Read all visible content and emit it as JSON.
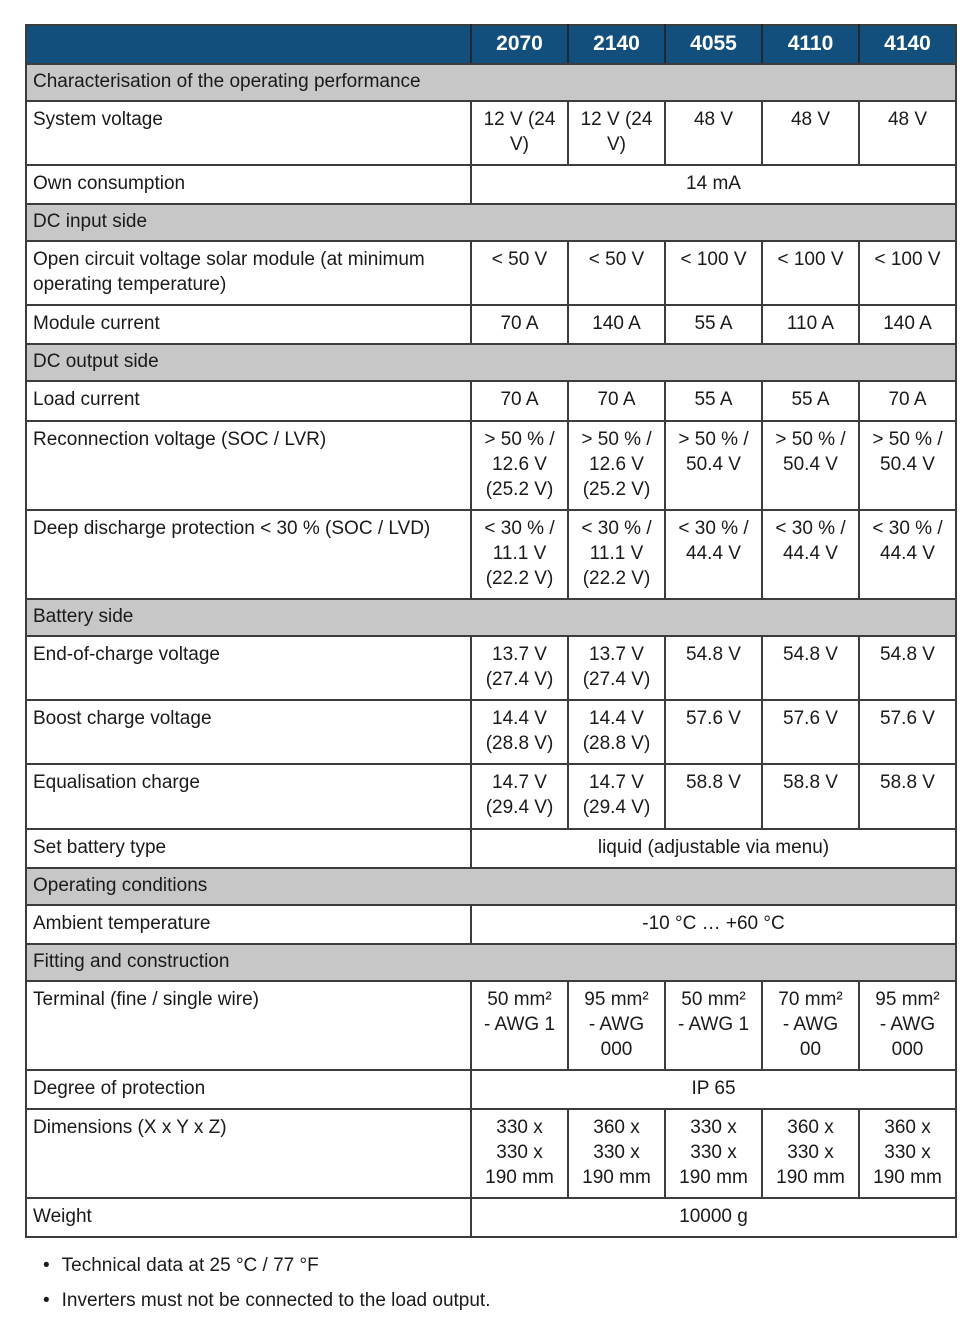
{
  "colors": {
    "header_bg": "#124F7D",
    "section_bg": "#C7C7C7",
    "border": "#3C3C3C",
    "text": "#1A1A1A",
    "header_text": "#FFFFFF"
  },
  "table": {
    "columns": [
      "",
      "2070",
      "2140",
      "4055",
      "4110",
      "4140"
    ],
    "rows": [
      {
        "type": "section",
        "label": "Characterisation of the operating performance"
      },
      {
        "type": "data",
        "label": "System voltage",
        "values": [
          "12 V (24\nV)",
          "12 V (24\nV)",
          "48 V",
          "48 V",
          "48 V"
        ]
      },
      {
        "type": "span",
        "label": "Own consumption",
        "value": "14 mA"
      },
      {
        "type": "section",
        "label": "DC input side"
      },
      {
        "type": "data",
        "label": "Open circuit voltage solar module (at minimum operating temperature)",
        "values": [
          "< 50 V",
          "< 50 V",
          "< 100 V",
          "< 100 V",
          "< 100 V"
        ]
      },
      {
        "type": "data",
        "label": "Module current",
        "values": [
          "70 A",
          "140 A",
          "55 A",
          "110 A",
          "140 A"
        ]
      },
      {
        "type": "section",
        "label": "DC output side"
      },
      {
        "type": "data",
        "label": "Load current",
        "values": [
          "70 A",
          "70 A",
          "55 A",
          "55 A",
          "70 A"
        ]
      },
      {
        "type": "data",
        "label": "Reconnection voltage (SOC / LVR)",
        "values": [
          "> 50 % /\n12.6 V\n(25.2 V)",
          "> 50 % /\n12.6 V\n(25.2 V)",
          "> 50 % /\n50.4 V",
          "> 50 % /\n50.4 V",
          "> 50 % /\n50.4 V"
        ]
      },
      {
        "type": "data",
        "label": "Deep discharge protection < 30 % (SOC / LVD)",
        "values": [
          "< 30 % /\n11.1 V\n(22.2 V)",
          "< 30 % /\n11.1 V\n(22.2 V)",
          "< 30 % /\n44.4 V",
          "< 30 % /\n44.4 V",
          "< 30 % /\n44.4 V"
        ]
      },
      {
        "type": "section",
        "label": "Battery side"
      },
      {
        "type": "data",
        "label": "End-of-charge voltage",
        "values": [
          "13.7 V\n(27.4 V)",
          "13.7 V\n(27.4 V)",
          "54.8 V",
          "54.8 V",
          "54.8 V"
        ]
      },
      {
        "type": "data",
        "label": "Boost charge voltage",
        "values": [
          "14.4 V\n(28.8 V)",
          "14.4 V\n(28.8 V)",
          "57.6 V",
          "57.6 V",
          "57.6 V"
        ]
      },
      {
        "type": "data",
        "label": "Equalisation charge",
        "values": [
          "14.7 V\n(29.4 V)",
          "14.7 V\n(29.4 V)",
          "58.8 V",
          "58.8 V",
          "58.8 V"
        ]
      },
      {
        "type": "span",
        "label": "Set battery type",
        "value": "liquid (adjustable via menu)"
      },
      {
        "type": "section",
        "label": "Operating conditions"
      },
      {
        "type": "span",
        "label": "Ambient temperature",
        "value": "-10 °C … +60 °C"
      },
      {
        "type": "section",
        "label": "Fitting and construction"
      },
      {
        "type": "data",
        "label": "Terminal (fine / single wire)",
        "values": [
          "50 mm²\n- AWG 1",
          "95 mm²\n- AWG\n000",
          "50 mm²\n- AWG 1",
          "70 mm²\n- AWG\n00",
          "95 mm²\n- AWG\n000"
        ]
      },
      {
        "type": "span",
        "label": "Degree of protection",
        "value": "IP 65"
      },
      {
        "type": "data",
        "label": "Dimensions (X x Y x Z)",
        "values": [
          "330 x\n330 x\n190 mm",
          "360 x\n330 x\n190 mm",
          "330 x\n330 x\n190 mm",
          "360 x\n330 x\n190 mm",
          "360 x\n330 x\n190 mm"
        ]
      },
      {
        "type": "span",
        "label": "Weight",
        "value": "10000 g"
      }
    ]
  },
  "footnotes": [
    "Technical data at 25 °C / 77 °F",
    "Inverters must not be connected to the load output."
  ]
}
